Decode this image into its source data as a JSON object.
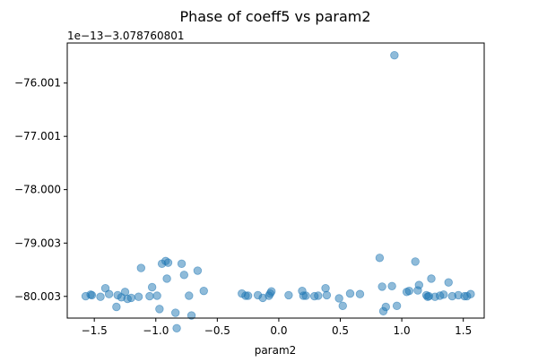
{
  "chart_data": {
    "type": "scatter",
    "title": "Phase of coeff5 vs param2",
    "xlabel": "param2",
    "ylabel": "",
    "offset_label": "1e−13−3.078760801",
    "xlim": [
      -1.72,
      1.67
    ],
    "ylim": [
      -80.41,
      -75.25
    ],
    "x_ticks": [
      -1.5,
      -1.0,
      -0.5,
      0.0,
      0.5,
      1.0,
      1.5
    ],
    "x_tick_labels": [
      "−1.5",
      "−1.0",
      "−0.5",
      "0.0",
      "0.5",
      "1.0",
      "1.5"
    ],
    "y_ticks": [
      -76.001,
      -77.001,
      -78.0,
      -79.003,
      -80.003
    ],
    "y_tick_labels": [
      "−76.001",
      "−77.001",
      "−78.000",
      "−79.003",
      "−80.003"
    ],
    "grid": false,
    "legend": "none",
    "colors": {
      "marker": "#1f77b4",
      "axes": "#000000",
      "background": "#ffffff"
    },
    "series": [
      {
        "x": [
          -1.57,
          -1.53,
          -1.52,
          -1.45,
          -1.41,
          -1.38,
          -1.32,
          -1.31,
          -1.28,
          -1.25,
          -1.23,
          -1.2,
          -1.14,
          -1.12,
          -1.05,
          -1.03,
          -0.99,
          -0.97,
          -0.95,
          -0.92,
          -0.91,
          -0.9,
          -0.84,
          -0.83,
          -0.79,
          -0.77,
          -0.73,
          -0.71,
          -0.66,
          -0.61,
          -0.3,
          -0.27,
          -0.25,
          -0.17,
          -0.13,
          -0.08,
          -0.07,
          -0.06,
          0.08,
          0.19,
          0.2,
          0.22,
          0.29,
          0.32,
          0.38,
          0.39,
          0.49,
          0.52,
          0.58,
          0.66,
          0.82,
          0.84,
          0.85,
          0.87,
          0.92,
          0.94,
          0.96,
          1.04,
          1.06,
          1.11,
          1.13,
          1.14,
          1.2,
          1.21,
          1.22,
          1.24,
          1.27,
          1.31,
          1.34,
          1.38,
          1.41,
          1.46,
          1.51,
          1.53,
          1.56
        ],
        "y": [
          -80.0,
          -79.97,
          -79.98,
          -80.01,
          -79.85,
          -79.96,
          -80.2,
          -79.98,
          -80.02,
          -79.92,
          -80.05,
          -80.03,
          -80.01,
          -79.47,
          -80.0,
          -79.83,
          -79.99,
          -80.24,
          -79.39,
          -79.34,
          -79.67,
          -79.37,
          -80.31,
          -80.6,
          -79.39,
          -79.6,
          -79.99,
          -80.36,
          -79.52,
          -79.9,
          -79.95,
          -79.99,
          -79.99,
          -79.98,
          -80.03,
          -79.99,
          -79.95,
          -79.91,
          -79.98,
          -79.9,
          -79.99,
          -79.99,
          -80.0,
          -79.99,
          -79.85,
          -79.98,
          -80.04,
          -80.18,
          -79.95,
          -79.96,
          -79.28,
          -79.82,
          -80.28,
          -80.2,
          -79.81,
          -75.48,
          -80.18,
          -79.92,
          -79.9,
          -79.35,
          -79.89,
          -79.79,
          -79.98,
          -80.01,
          -80.0,
          -79.67,
          -80.01,
          -79.99,
          -79.97,
          -79.74,
          -80.0,
          -79.98,
          -80.0,
          -80.0,
          -79.96
        ]
      }
    ]
  }
}
